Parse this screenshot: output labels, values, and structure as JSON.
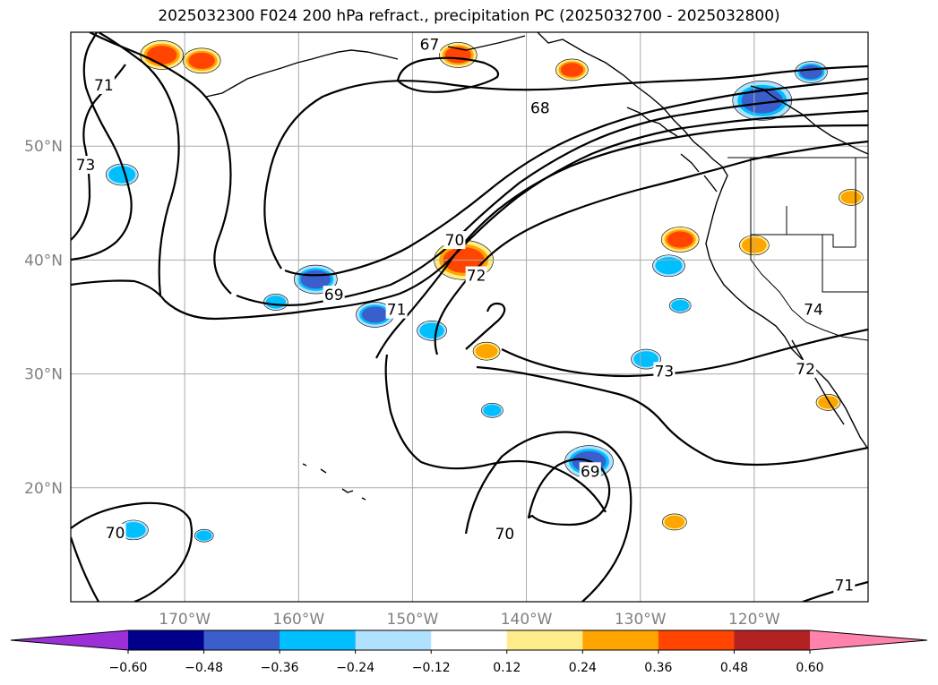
{
  "title": "2025032300 F024 200 hPa refract., precipitation PC (2025032700 - 2025032800)",
  "map": {
    "lon_range": [
      -180,
      -110
    ],
    "lat_range": [
      10,
      60
    ],
    "lat_ticks": [
      {
        "value": 20,
        "label": "20°N"
      },
      {
        "value": 30,
        "label": "30°N"
      },
      {
        "value": 40,
        "label": "40°N"
      },
      {
        "value": 50,
        "label": "50°N"
      }
    ],
    "lon_ticks": [
      {
        "value": -170,
        "label": "170°W"
      },
      {
        "value": -160,
        "label": "160°W"
      },
      {
        "value": -150,
        "label": "150°W"
      },
      {
        "value": -140,
        "label": "140°W"
      },
      {
        "value": -130,
        "label": "130°W"
      },
      {
        "value": -120,
        "label": "120°W"
      }
    ],
    "grid": true
  },
  "contour_labels": [
    {
      "text": "67",
      "lon": -148.5,
      "lat": 58.8
    },
    {
      "text": "68",
      "lon": -138.8,
      "lat": 53.2
    },
    {
      "text": "69",
      "lon": -156.9,
      "lat": 36.8
    },
    {
      "text": "70",
      "lon": -146.3,
      "lat": 41.6
    },
    {
      "text": "71",
      "lon": -151.4,
      "lat": 35.5
    },
    {
      "text": "72",
      "lon": -144.4,
      "lat": 38.5
    },
    {
      "text": "73",
      "lon": -127.9,
      "lat": 30.1
    },
    {
      "text": "74",
      "lon": -114.8,
      "lat": 35.5
    },
    {
      "text": "72",
      "lon": -115.5,
      "lat": 30.3
    },
    {
      "text": "69",
      "lon": -134.4,
      "lat": 21.3
    },
    {
      "text": "70",
      "lon": -141.9,
      "lat": 15.8
    },
    {
      "text": "70",
      "lon": -176.1,
      "lat": 15.9
    },
    {
      "text": "71",
      "lon": -112.1,
      "lat": 11.3
    },
    {
      "text": "71",
      "lon": -177.1,
      "lat": 55.2
    },
    {
      "text": "73",
      "lon": -178.7,
      "lat": 48.2
    }
  ],
  "colorbar": {
    "ticks": [
      "−0.60",
      "−0.48",
      "−0.36",
      "−0.24",
      "−0.12",
      "0.12",
      "0.24",
      "0.36",
      "0.48",
      "0.60"
    ],
    "colors": [
      "#9b30d9",
      "#00008b",
      "#3a5fcd",
      "#00bfff",
      "#b0e2ff",
      "#ffffff",
      "#ffec8b",
      "#ffa500",
      "#ff4500",
      "#b22222",
      "#ff82ab"
    ],
    "extend": "both"
  },
  "chart_data": {
    "type": "heatmap",
    "title": "2025032300 F024 200 hPa refract., precipitation PC (2025032700 - 2025032800)",
    "xlabel": "",
    "ylabel": "",
    "x_range": [
      -180,
      -110
    ],
    "y_range": [
      10,
      60
    ],
    "contour_levels": [
      67,
      68,
      69,
      70,
      71,
      72,
      73,
      74
    ],
    "color_levels": [
      -0.6,
      -0.48,
      -0.36,
      -0.24,
      -0.12,
      0.12,
      0.24,
      0.36,
      0.48,
      0.6
    ],
    "precip_patches": [
      {
        "lon": -145.5,
        "lat": 40.0,
        "value": 0.4
      },
      {
        "lon": -146.0,
        "lat": 58.0,
        "value": 0.42
      },
      {
        "lon": -172.0,
        "lat": 58.0,
        "value": 0.45
      },
      {
        "lon": -168.5,
        "lat": 57.5,
        "value": 0.4
      },
      {
        "lon": -136.0,
        "lat": 56.7,
        "value": 0.38
      },
      {
        "lon": -126.5,
        "lat": 41.8,
        "value": 0.38
      },
      {
        "lon": -143.5,
        "lat": 32.0,
        "value": 0.3
      },
      {
        "lon": -127.0,
        "lat": 17.0,
        "value": 0.3
      },
      {
        "lon": -113.5,
        "lat": 27.5,
        "value": 0.3
      },
      {
        "lon": -120.0,
        "lat": 41.3,
        "value": 0.28
      },
      {
        "lon": -111.5,
        "lat": 45.5,
        "value": 0.28
      },
      {
        "lon": -119.3,
        "lat": 54.0,
        "value": -0.4
      },
      {
        "lon": -115.0,
        "lat": 56.5,
        "value": -0.38
      },
      {
        "lon": -134.5,
        "lat": 22.3,
        "value": -0.4
      },
      {
        "lon": -158.5,
        "lat": 38.3,
        "value": -0.38
      },
      {
        "lon": -153.3,
        "lat": 35.2,
        "value": -0.38
      },
      {
        "lon": -127.5,
        "lat": 39.5,
        "value": -0.3
      },
      {
        "lon": -148.3,
        "lat": 33.8,
        "value": -0.36
      },
      {
        "lon": -175.5,
        "lat": 47.5,
        "value": -0.3
      },
      {
        "lon": -174.5,
        "lat": 16.3,
        "value": -0.3
      },
      {
        "lon": -143.0,
        "lat": 26.8,
        "value": -0.28
      },
      {
        "lon": -129.5,
        "lat": 31.3,
        "value": -0.28
      },
      {
        "lon": -162.0,
        "lat": 36.3,
        "value": -0.28
      },
      {
        "lon": -126.5,
        "lat": 36.0,
        "value": -0.26
      },
      {
        "lon": -168.3,
        "lat": 15.8,
        "value": -0.26
      }
    ]
  }
}
